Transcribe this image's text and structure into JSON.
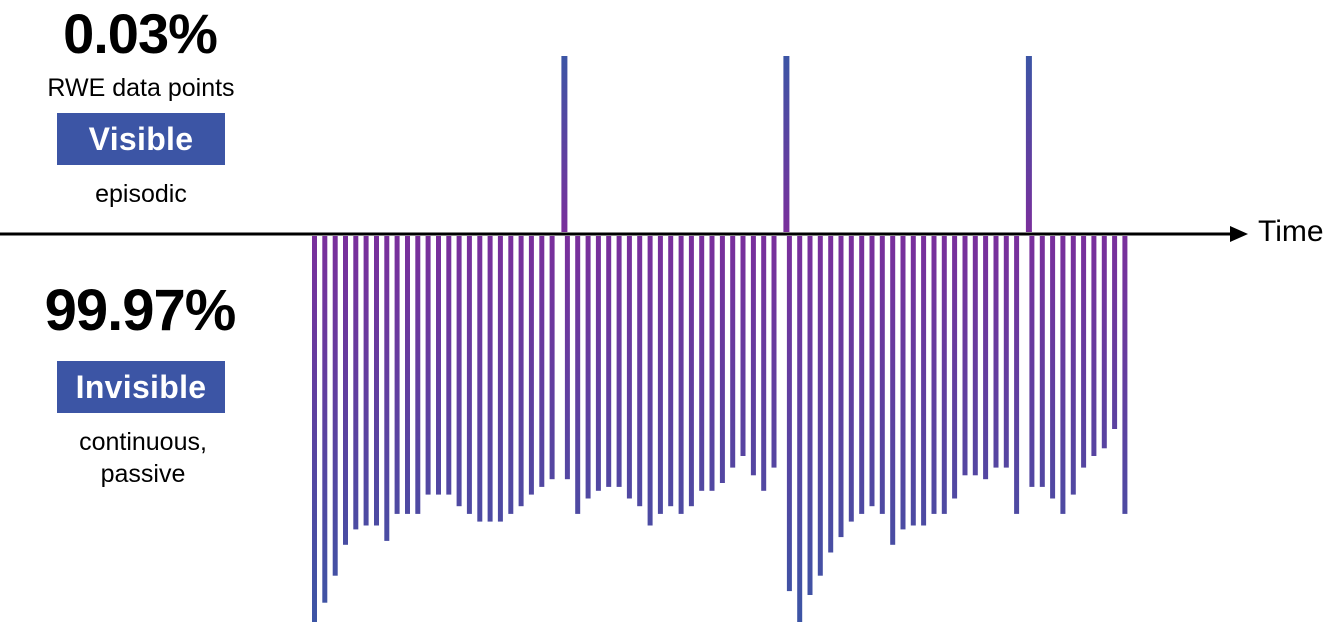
{
  "colors": {
    "badge": "#3c55a5",
    "bar_top": "#7a2f9c",
    "bar_bottom": "#3c55a5",
    "axis": "#000000"
  },
  "visible": {
    "percent": "0.03%",
    "caption": "RWE data points",
    "badge": "Visible",
    "subcaption": "episodic"
  },
  "invisible": {
    "percent": "99.97%",
    "badge": "Invisible",
    "subcaption_line1": "continuous,",
    "subcaption_line2": "passive"
  },
  "axis": {
    "label": "Time"
  },
  "episodic_spikes": {
    "count": 3
  },
  "passive_bars": {
    "count": 78,
    "depth": [
      1.0,
      0.95,
      0.88,
      0.8,
      0.76,
      0.75,
      0.75,
      0.79,
      0.72,
      0.72,
      0.72,
      0.67,
      0.67,
      0.67,
      0.7,
      0.72,
      0.74,
      0.74,
      0.74,
      0.72,
      0.7,
      0.67,
      0.65,
      0.63,
      0.63,
      0.72,
      0.68,
      0.66,
      0.65,
      0.65,
      0.68,
      0.7,
      0.75,
      0.72,
      0.7,
      0.72,
      0.7,
      0.66,
      0.66,
      0.64,
      0.6,
      0.57,
      0.62,
      0.66,
      0.6,
      0.92,
      1.0,
      0.93,
      0.88,
      0.82,
      0.78,
      0.74,
      0.72,
      0.7,
      0.72,
      0.8,
      0.76,
      0.75,
      0.75,
      0.72,
      0.72,
      0.68,
      0.62,
      0.62,
      0.63,
      0.6,
      0.6,
      0.72,
      0.65,
      0.65,
      0.68,
      0.72,
      0.67,
      0.6,
      0.57,
      0.55,
      0.5,
      0.72
    ]
  }
}
